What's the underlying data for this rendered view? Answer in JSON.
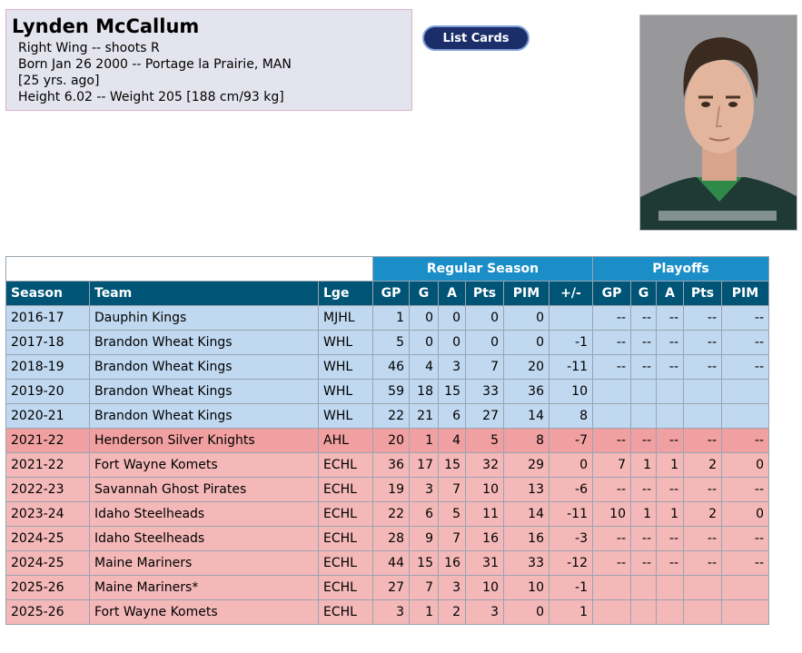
{
  "player": {
    "name": "Lynden McCallum",
    "position": "Right Wing -- shoots R",
    "born": "Born Jan 26 2000 -- Portage la Prairie, MAN",
    "age": "[25 yrs. ago]",
    "size": "Height 6.02 -- Weight 205 [188 cm/93 kg]"
  },
  "buttons": {
    "list_cards": "List Cards"
  },
  "table": {
    "group_regular": "Regular Season",
    "group_playoffs": "Playoffs",
    "headers": [
      "Season",
      "Team",
      "Lge",
      "GP",
      "G",
      "A",
      "Pts",
      "PIM",
      "+/-",
      "GP",
      "G",
      "A",
      "Pts",
      "PIM"
    ],
    "rows": [
      {
        "style": "blue",
        "cells": [
          "2016-17",
          "Dauphin Kings",
          "MJHL",
          "1",
          "0",
          "0",
          "0",
          "0",
          "",
          "--",
          "--",
          "--",
          "--",
          "--"
        ]
      },
      {
        "style": "blue",
        "cells": [
          "2017-18",
          "Brandon Wheat Kings",
          "WHL",
          "5",
          "0",
          "0",
          "0",
          "0",
          "-1",
          "--",
          "--",
          "--",
          "--",
          "--"
        ]
      },
      {
        "style": "blue",
        "cells": [
          "2018-19",
          "Brandon Wheat Kings",
          "WHL",
          "46",
          "4",
          "3",
          "7",
          "20",
          "-11",
          "--",
          "--",
          "--",
          "--",
          "--"
        ]
      },
      {
        "style": "blue",
        "cells": [
          "2019-20",
          "Brandon Wheat Kings",
          "WHL",
          "59",
          "18",
          "15",
          "33",
          "36",
          "10",
          "",
          "",
          "",
          "",
          ""
        ]
      },
      {
        "style": "blue",
        "cells": [
          "2020-21",
          "Brandon Wheat Kings",
          "WHL",
          "22",
          "21",
          "6",
          "27",
          "14",
          "8",
          "",
          "",
          "",
          "",
          ""
        ]
      },
      {
        "style": "dark",
        "cells": [
          "2021-22",
          "Henderson Silver Knights",
          "AHL",
          "20",
          "1",
          "4",
          "5",
          "8",
          "-7",
          "--",
          "--",
          "--",
          "--",
          "--"
        ]
      },
      {
        "style": "red",
        "cells": [
          "2021-22",
          "Fort Wayne Komets",
          "ECHL",
          "36",
          "17",
          "15",
          "32",
          "29",
          "0",
          "7",
          "1",
          "1",
          "2",
          "0"
        ]
      },
      {
        "style": "red",
        "cells": [
          "2022-23",
          "Savannah Ghost Pirates",
          "ECHL",
          "19",
          "3",
          "7",
          "10",
          "13",
          "-6",
          "--",
          "--",
          "--",
          "--",
          "--"
        ]
      },
      {
        "style": "red",
        "cells": [
          "2023-24",
          "Idaho Steelheads",
          "ECHL",
          "22",
          "6",
          "5",
          "11",
          "14",
          "-11",
          "10",
          "1",
          "1",
          "2",
          "0"
        ]
      },
      {
        "style": "red",
        "cells": [
          "2024-25",
          "Idaho Steelheads",
          "ECHL",
          "28",
          "9",
          "7",
          "16",
          "16",
          "-3",
          "--",
          "--",
          "--",
          "--",
          "--"
        ]
      },
      {
        "style": "red",
        "cells": [
          "2024-25",
          "Maine Mariners",
          "ECHL",
          "44",
          "15",
          "16",
          "31",
          "33",
          "-12",
          "--",
          "--",
          "--",
          "--",
          "--"
        ]
      },
      {
        "style": "red",
        "cells": [
          "2025-26",
          "Maine Mariners*",
          "ECHL",
          "27",
          "7",
          "3",
          "10",
          "10",
          "-1",
          "",
          "",
          "",
          "",
          ""
        ]
      },
      {
        "style": "red",
        "cells": [
          "2025-26",
          "Fort Wayne Komets",
          "ECHL",
          "3",
          "1",
          "2",
          "3",
          "0",
          "1",
          "",
          "",
          "",
          "",
          ""
        ]
      }
    ]
  }
}
